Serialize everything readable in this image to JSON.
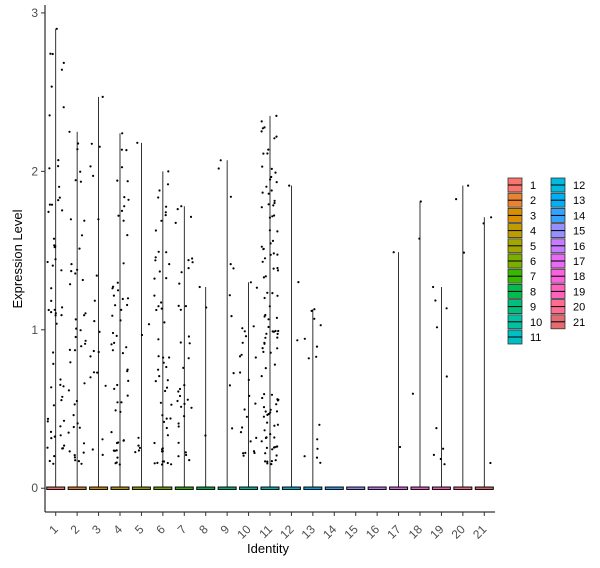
{
  "chart_data": {
    "type": "violin",
    "xlabel": "Identity",
    "ylabel": "Expression Level",
    "ylim": [
      -0.15,
      3.05
    ],
    "yticks": [
      0,
      1,
      2,
      3
    ],
    "categories": [
      "1",
      "2",
      "3",
      "4",
      "5",
      "6",
      "7",
      "8",
      "9",
      "10",
      "11",
      "12",
      "13",
      "14",
      "15",
      "16",
      "17",
      "18",
      "19",
      "20",
      "21"
    ],
    "max_values": [
      2.9,
      2.25,
      2.47,
      2.24,
      2.18,
      2.0,
      1.78,
      1.27,
      2.07,
      1.3,
      2.35,
      1.91,
      1.13,
      0,
      0,
      0,
      1.49,
      1.81,
      1.27,
      1.91,
      1.71
    ],
    "point_counts": [
      60,
      45,
      20,
      55,
      8,
      55,
      35,
      3,
      10,
      25,
      110,
      3,
      14,
      0,
      0,
      0,
      2,
      3,
      10,
      3,
      3
    ],
    "colors": [
      "#F8766D",
      "#EA8331",
      "#D89000",
      "#C09B00",
      "#A3A500",
      "#7CAE00",
      "#39B600",
      "#00BB4E",
      "#00BF7D",
      "#00C1A3",
      "#00BFC4",
      "#00BAE0",
      "#00B0F6",
      "#35A2FF",
      "#9590FF",
      "#C77CFF",
      "#E76BF3",
      "#FA62DB",
      "#FF62BC",
      "#FF6C91",
      "#E46B72"
    ],
    "legend": {
      "column1": [
        "1",
        "2",
        "3",
        "4",
        "5",
        "6",
        "7",
        "8",
        "9",
        "10",
        "11"
      ],
      "column2": [
        "12",
        "13",
        "14",
        "15",
        "16",
        "17",
        "18",
        "19",
        "20",
        "21"
      ]
    }
  }
}
